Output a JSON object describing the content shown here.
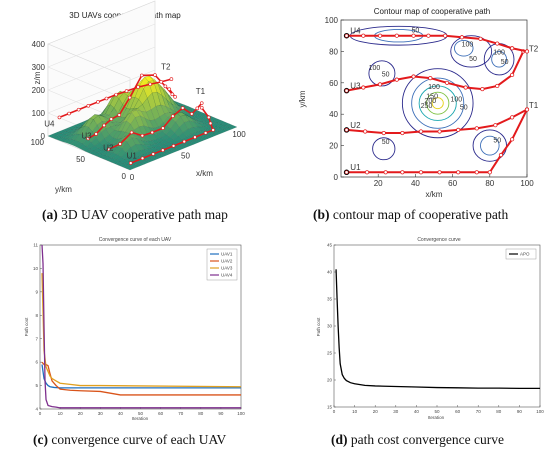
{
  "captions": [
    {
      "letter": "(a)",
      "text": " 3D UAV cooperative path map"
    },
    {
      "letter": "(b)",
      "text": " contour map of cooperative path"
    },
    {
      "letter": "(c)",
      "text": " convergence curve of each UAV"
    },
    {
      "letter": "(d)",
      "text": " path cost convergence curve"
    }
  ],
  "chart_data": [
    {
      "type": "line",
      "title": "3D UAVs cooperative path map",
      "xlabel": "x/km",
      "ylabel": "y/km",
      "zlabel": "z/m",
      "xlim": [
        0,
        100
      ],
      "ylim": [
        0,
        100
      ],
      "zlim": [
        0,
        400
      ],
      "xticks": [
        "0",
        "50",
        "100"
      ],
      "yticks": [
        "0",
        "50",
        "100"
      ],
      "zticks": [
        "0",
        "100",
        "200",
        "300",
        "400"
      ],
      "labels": [
        "U1",
        "U2",
        "U3",
        "U4",
        "T1",
        "T2"
      ]
    },
    {
      "type": "line",
      "title": "Contour map of cooperative path",
      "xlabel": "x/km",
      "ylabel": "y/km",
      "xlim": [
        0,
        100
      ],
      "ylim": [
        0,
        100
      ],
      "xticks": [
        "20",
        "40",
        "60",
        "80",
        "100"
      ],
      "yticks": [
        "0",
        "20",
        "40",
        "60",
        "80",
        "100"
      ],
      "start_labels": [
        "U1",
        "U2",
        "U3",
        "U4"
      ],
      "target_labels": [
        "T1",
        "T2"
      ],
      "contour_labels": [
        "50",
        "100",
        "50",
        "100",
        "50",
        "50",
        "100",
        "150",
        "200",
        "250",
        "100",
        "50",
        "100",
        "50",
        "50"
      ],
      "series": [
        {
          "name": "U1",
          "x": [
            3,
            14,
            24,
            33,
            43,
            53,
            63,
            73,
            80,
            86,
            92,
            100
          ],
          "y": [
            3,
            3,
            3,
            3,
            3,
            3,
            3,
            3,
            3,
            14,
            24,
            43
          ]
        },
        {
          "name": "U2",
          "x": [
            3,
            13,
            23,
            33,
            43,
            53,
            63,
            73,
            83,
            92,
            100
          ],
          "y": [
            30,
            29,
            28,
            28,
            29,
            29,
            30,
            31,
            33,
            38,
            43
          ]
        },
        {
          "name": "U3",
          "x": [
            3,
            12,
            21,
            30,
            39,
            48,
            57,
            67,
            76,
            84,
            92,
            98
          ],
          "y": [
            55,
            57,
            59,
            62,
            64,
            63,
            60,
            57,
            56,
            58,
            65,
            80
          ]
        },
        {
          "name": "U4",
          "x": [
            3,
            12,
            21,
            30,
            39,
            47,
            56,
            65,
            75,
            84,
            92,
            100
          ],
          "y": [
            90,
            90,
            90,
            90,
            90,
            90,
            90,
            89,
            88,
            85,
            82,
            80
          ]
        }
      ]
    },
    {
      "type": "line",
      "title": "Convergence curve of each UAV",
      "xlabel": "Iteration",
      "ylabel": "Path cost",
      "xlim": [
        0,
        100
      ],
      "ylim": [
        4,
        11
      ],
      "xticks": [
        "0",
        "10",
        "20",
        "30",
        "40",
        "50",
        "60",
        "70",
        "80",
        "90",
        "100"
      ],
      "yticks": [
        "4",
        "5",
        "6",
        "7",
        "8",
        "9",
        "10",
        "11"
      ],
      "legend_position": "top-right",
      "series": [
        {
          "name": "UAV1",
          "color": "#1f6fbf",
          "x": [
            1,
            2,
            3,
            4,
            5,
            7,
            10,
            15,
            20,
            30,
            50,
            100
          ],
          "y": [
            5.9,
            5.3,
            5.1,
            5.0,
            4.95,
            4.92,
            4.9,
            4.9,
            4.9,
            4.9,
            4.9,
            4.9
          ]
        },
        {
          "name": "UAV2",
          "color": "#d9541a",
          "x": [
            1,
            2,
            3,
            4,
            5,
            6,
            8,
            10,
            15,
            20,
            30,
            40,
            50,
            100
          ],
          "y": [
            6.0,
            5.9,
            5.9,
            5.85,
            5.5,
            5.2,
            5.0,
            4.85,
            4.8,
            4.78,
            4.75,
            4.6,
            4.6,
            4.6
          ]
        },
        {
          "name": "UAV3",
          "color": "#e0a020",
          "x": [
            1,
            2,
            3,
            4,
            5,
            6,
            8,
            10,
            15,
            20,
            30,
            100
          ],
          "y": [
            9.8,
            6.5,
            5.8,
            5.6,
            5.4,
            5.3,
            5.2,
            5.1,
            5.05,
            5.0,
            5.0,
            4.95
          ]
        },
        {
          "name": "UAV4",
          "color": "#7e2f8e",
          "x": [
            1,
            1.5,
            2,
            2.5,
            3,
            4,
            6,
            8,
            10,
            20,
            50,
            100
          ],
          "y": [
            11.0,
            10.2,
            7.5,
            5.2,
            4.4,
            4.15,
            4.1,
            4.08,
            4.05,
            4.05,
            4.05,
            4.05
          ]
        }
      ]
    },
    {
      "type": "line",
      "title": "Convergence curve",
      "xlabel": "Iteration",
      "ylabel": "Path cost",
      "xlim": [
        0,
        100
      ],
      "ylim": [
        15,
        45
      ],
      "xticks": [
        "0",
        "10",
        "20",
        "30",
        "40",
        "50",
        "60",
        "70",
        "80",
        "90",
        "100"
      ],
      "yticks": [
        "15",
        "20",
        "25",
        "30",
        "35",
        "40",
        "45"
      ],
      "legend_position": "top-right",
      "series": [
        {
          "name": "APO",
          "color": "#000000",
          "x": [
            1,
            1.5,
            2,
            2.5,
            3,
            4,
            5,
            6,
            8,
            10,
            15,
            20,
            30,
            40,
            50,
            60,
            70,
            80,
            90,
            100
          ],
          "y": [
            40.5,
            35,
            30,
            26,
            23,
            21,
            20.3,
            19.9,
            19.5,
            19.3,
            19.0,
            18.9,
            18.8,
            18.7,
            18.6,
            18.55,
            18.5,
            18.5,
            18.45,
            18.45
          ]
        }
      ]
    }
  ]
}
